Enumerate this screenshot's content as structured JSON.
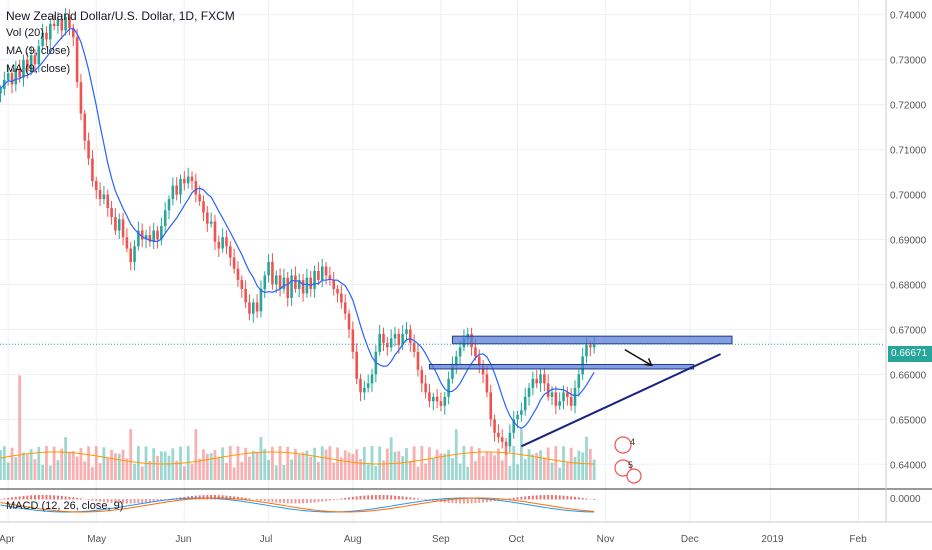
{
  "header": {
    "title": "New Zealand Dollar/U.S. Dollar, 1D, FXCM",
    "vol_legend": "Vol (20)",
    "ma_legend_1": "MA (9, close)",
    "ma_legend_2": "MA (9, close)",
    "macd_legend": "MACD (12, 26, close, 9)"
  },
  "last_price": "0.66671",
  "events": [
    "4",
    "5"
  ],
  "colors": {
    "up": "#26a69a",
    "down": "#ef5350",
    "ma": "#2962ff",
    "grid": "#eef0f3",
    "zone_fill": "#5b7fd6",
    "zone_stroke": "#1e3a8a",
    "trendline": "#1a237e",
    "macd_line": "#2196f3",
    "signal_line": "#ff6d00",
    "vol_ma": "#ff9800"
  },
  "chart_data": {
    "type": "candlestick",
    "symbol": "New Zealand Dollar/U.S. Dollar",
    "interval": "1D",
    "source": "FXCM",
    "ylim": [
      0.6365,
      0.7415
    ],
    "y_ticks": [
      "0.74000",
      "0.73000",
      "0.72000",
      "0.71000",
      "0.70000",
      "0.69000",
      "0.68000",
      "0.67000",
      "0.66000",
      "0.65000",
      "0.64000"
    ],
    "y_tick_values": [
      0.74,
      0.73,
      0.72,
      0.71,
      0.7,
      0.69,
      0.68,
      0.67,
      0.66,
      0.65,
      0.64
    ],
    "macd_tick": "0.0000",
    "x_ticks": [
      {
        "label": "Apr",
        "idx": 2
      },
      {
        "label": "May",
        "idx": 25
      },
      {
        "label": "Jun",
        "idx": 48
      },
      {
        "label": "Jul",
        "idx": 70
      },
      {
        "label": "Aug",
        "idx": 92
      },
      {
        "label": "Sep",
        "idx": 115
      },
      {
        "label": "Oct",
        "idx": 135
      },
      {
        "label": "Nov",
        "idx": 158
      },
      {
        "label": "Dec",
        "idx": 180
      },
      {
        "label": "2019",
        "idx": 201
      },
      {
        "label": "Feb",
        "idx": 224
      }
    ],
    "last_price": 0.66671,
    "closes": [
      0.7235,
      0.7255,
      0.727,
      0.7245,
      0.728,
      0.726,
      0.73,
      0.7275,
      0.731,
      0.729,
      0.733,
      0.736,
      0.7345,
      0.738,
      0.7375,
      0.739,
      0.7365,
      0.7395,
      0.737,
      0.735,
      0.725,
      0.718,
      0.712,
      0.708,
      0.703,
      0.701,
      0.699,
      0.7,
      0.697,
      0.695,
      0.692,
      0.6945,
      0.6905,
      0.688,
      0.685,
      0.6885,
      0.692,
      0.69,
      0.691,
      0.6895,
      0.692,
      0.69,
      0.693,
      0.6965,
      0.699,
      0.702,
      0.7,
      0.7035,
      0.7025,
      0.704,
      0.703,
      0.7,
      0.6985,
      0.696,
      0.6935,
      0.694,
      0.6895,
      0.688,
      0.6905,
      0.6885,
      0.686,
      0.6835,
      0.681,
      0.679,
      0.676,
      0.6735,
      0.676,
      0.674,
      0.679,
      0.682,
      0.685,
      0.68,
      0.682,
      0.679,
      0.6815,
      0.677,
      0.682,
      0.679,
      0.681,
      0.678,
      0.6815,
      0.679,
      0.683,
      0.681,
      0.684,
      0.682,
      0.681,
      0.679,
      0.678,
      0.676,
      0.6735,
      0.67,
      0.665,
      0.659,
      0.656,
      0.657,
      0.658,
      0.66,
      0.665,
      0.669,
      0.667,
      0.666,
      0.668,
      0.669,
      0.6665,
      0.669,
      0.67,
      0.667,
      0.665,
      0.661,
      0.658,
      0.656,
      0.654,
      0.655,
      0.654,
      0.653,
      0.655,
      0.659,
      0.662,
      0.664,
      0.666,
      0.668,
      0.669,
      0.666,
      0.664,
      0.662,
      0.66,
      0.656,
      0.65,
      0.647,
      0.646,
      0.645,
      0.644,
      0.647,
      0.65,
      0.651,
      0.652,
      0.655,
      0.657,
      0.659,
      0.658,
      0.66,
      0.658,
      0.655,
      0.656,
      0.653,
      0.654,
      0.656,
      0.655,
      0.653,
      0.657,
      0.66,
      0.664,
      0.6665,
      0.666,
      0.6667
    ],
    "annotations": {
      "resistance_zone": {
        "from_idx": 118,
        "to_idx": 191,
        "low": 0.6668,
        "high": 0.6685
      },
      "support_zone": {
        "from_idx": 112,
        "to_idx": 181,
        "low": 0.6612,
        "high": 0.6622
      },
      "trendline": {
        "from_idx": 136,
        "from_value": 0.644,
        "to_idx": 188,
        "to_value": 0.6645
      },
      "arrow": {
        "from_idx": 163,
        "from_value": 0.6655,
        "to_idx": 170,
        "to_value": 0.662
      }
    },
    "grid": true,
    "legend_position": "top-left"
  }
}
